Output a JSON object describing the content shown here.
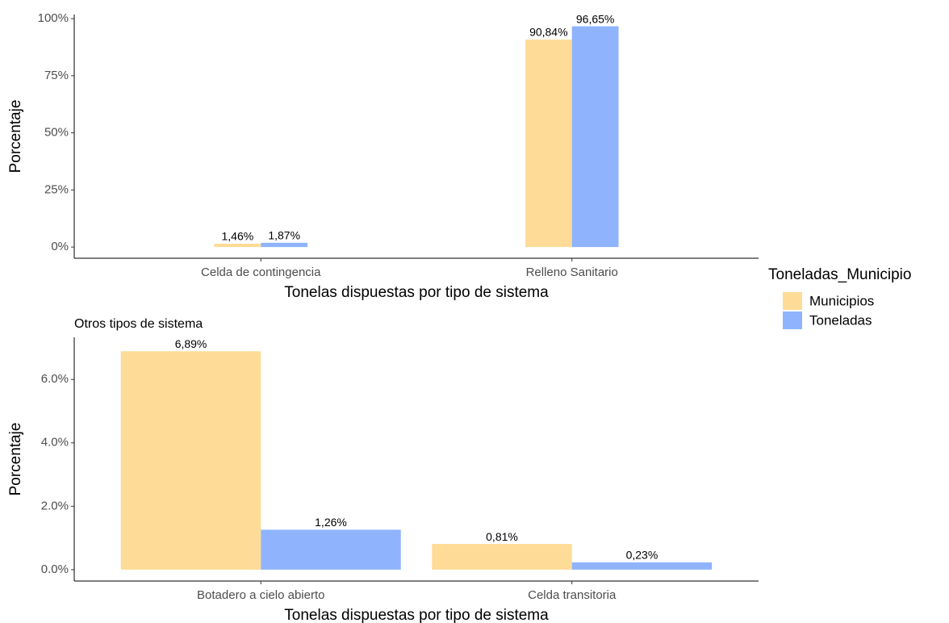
{
  "chart_data": [
    {
      "type": "bar",
      "x_label": "Tonelas dispuestas por tipo de sistema",
      "y_label": "Porcentaje",
      "legend_title": "Toneladas_Municipio",
      "categories": [
        "Celda de contingencia",
        "Relleno Sanitario"
      ],
      "series": [
        {
          "name": "Municipios",
          "color": "#fedc97",
          "values": [
            1.46,
            90.84
          ],
          "value_labels": [
            "1,46%",
            "90,84%"
          ]
        },
        {
          "name": "Toneladas",
          "color": "#8fb4fd",
          "values": [
            1.87,
            96.65
          ],
          "value_labels": [
            "1,87%",
            "96,65%"
          ]
        }
      ],
      "ylim": [
        -4.9,
        101.8
      ],
      "yticks": [
        {
          "value": 0,
          "label": "0%"
        },
        {
          "value": 25,
          "label": "25%"
        },
        {
          "value": 50,
          "label": "50%"
        },
        {
          "value": 75,
          "label": "75%"
        },
        {
          "value": 100,
          "label": "100%"
        }
      ]
    },
    {
      "type": "bar",
      "subtitle": "Otros tipos de sistema",
      "x_label": "Tonelas dispuestas por tipo de sistema",
      "y_label": "Porcentaje",
      "categories": [
        "Botadero a cielo abierto",
        "Celda transitoria"
      ],
      "series": [
        {
          "name": "Municipios",
          "color": "#fedc97",
          "values": [
            6.89,
            0.81
          ],
          "value_labels": [
            "6,89%",
            "0,81%"
          ]
        },
        {
          "name": "Toneladas",
          "color": "#8fb4fd",
          "values": [
            1.26,
            0.23
          ],
          "value_labels": [
            "1,26%",
            "0,23%"
          ]
        }
      ],
      "ylim": [
        -0.36,
        7.33
      ],
      "yticks": [
        {
          "value": 0,
          "label": "0.0%"
        },
        {
          "value": 2,
          "label": "2.0%"
        },
        {
          "value": 4,
          "label": "4.0%"
        },
        {
          "value": 6,
          "label": "6.0%"
        }
      ]
    }
  ]
}
